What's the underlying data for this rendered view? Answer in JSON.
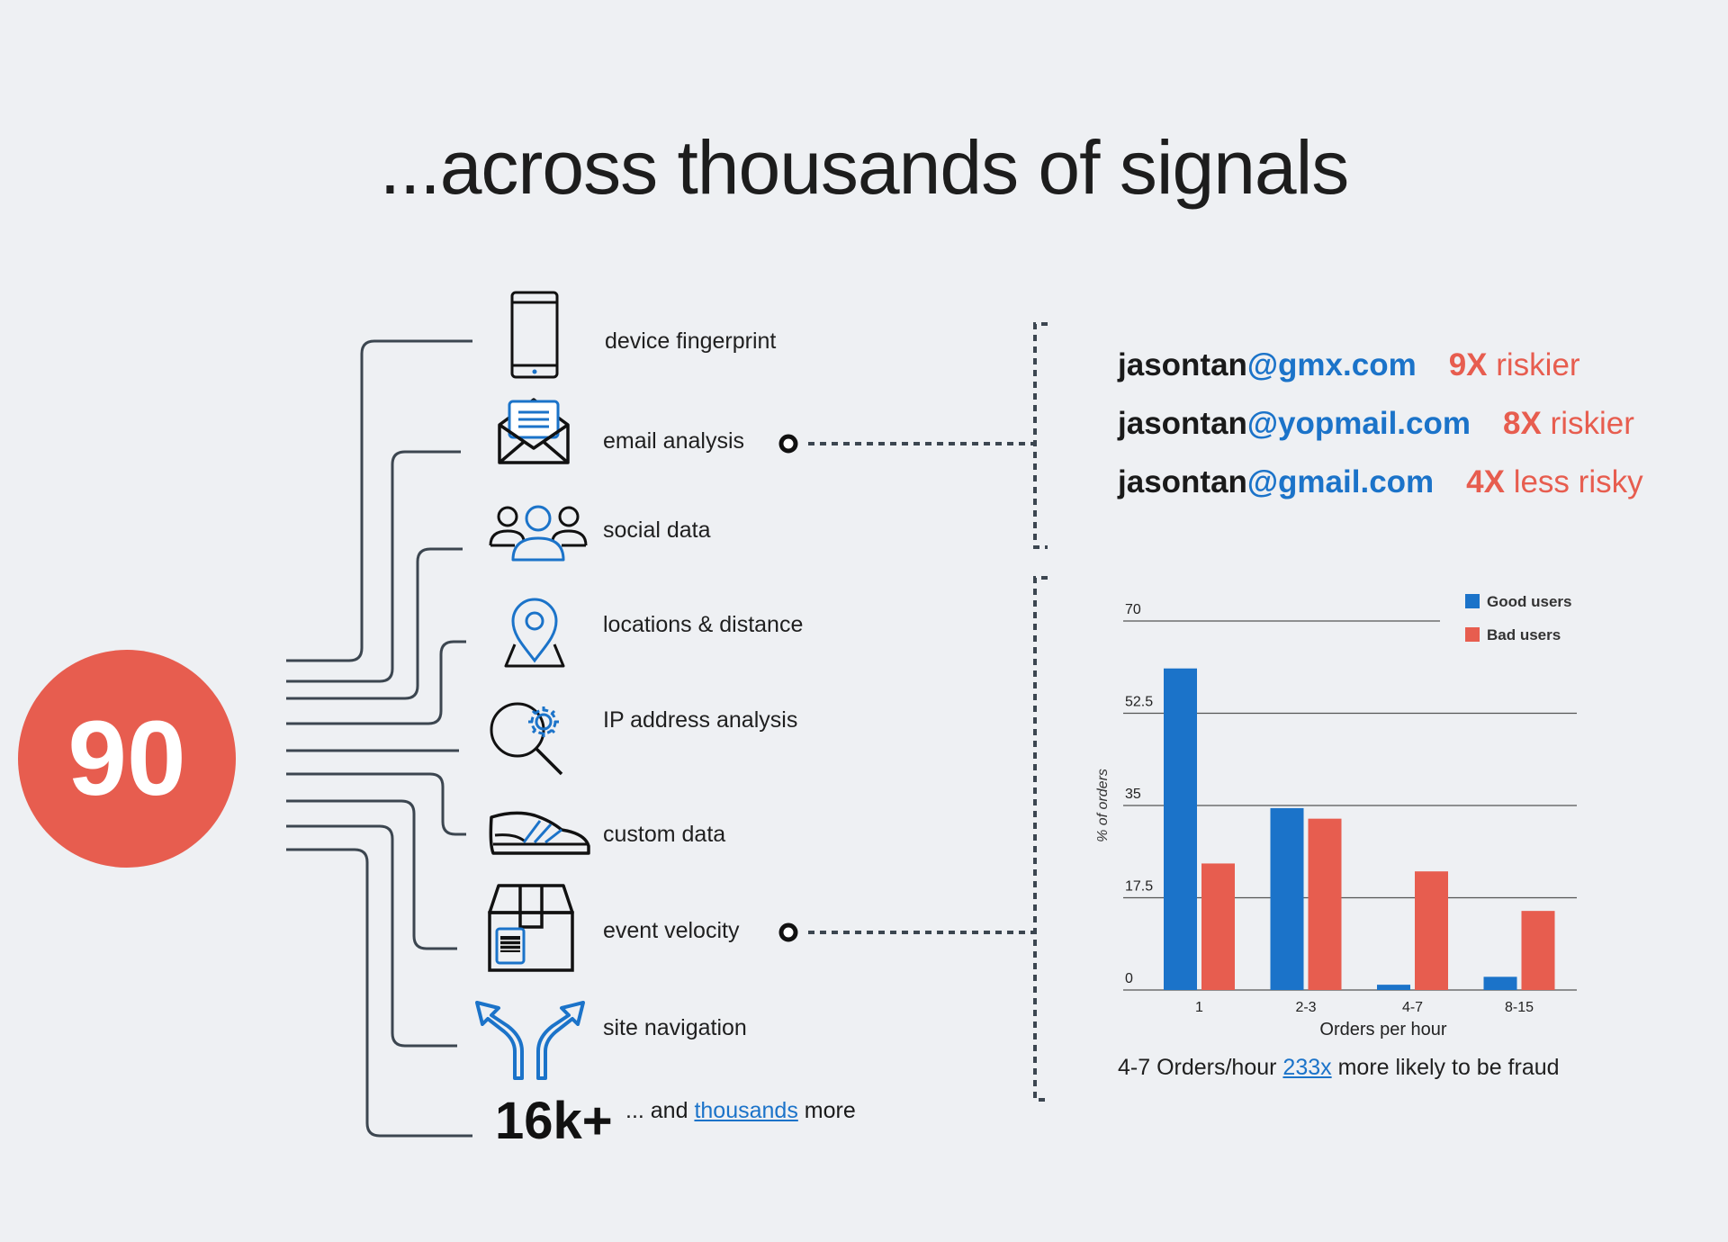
{
  "title": "...across thousands of signals",
  "score": "90",
  "signals": [
    {
      "label": "device fingerprint",
      "icon": "smartphone-icon"
    },
    {
      "label": "email analysis",
      "icon": "envelope-icon"
    },
    {
      "label": "social data",
      "icon": "users-icon"
    },
    {
      "label": "locations & distance",
      "icon": "location-pin-icon"
    },
    {
      "label": "IP address analysis",
      "icon": "gear-search-icon"
    },
    {
      "label": "custom data",
      "icon": "sneaker-icon"
    },
    {
      "label": "event velocity",
      "icon": "package-icon"
    },
    {
      "label": "site navigation",
      "icon": "split-arrow-icon"
    }
  ],
  "more": {
    "count": "16k+",
    "prefix": "... and ",
    "link": "thousands",
    "suffix": " more"
  },
  "emails": [
    {
      "user": "jasontan",
      "domain": "@gmx.com",
      "multiplier": "9X",
      "risk": " riskier"
    },
    {
      "user": "jasontan",
      "domain": "@yopmail.com",
      "multiplier": "8X",
      "risk": " riskier"
    },
    {
      "user": "jasontan",
      "domain": "@gmail.com",
      "multiplier": "4X",
      "risk": " less risky"
    }
  ],
  "chart_data": {
    "type": "bar",
    "categories": [
      "1",
      "2-3",
      "4-7",
      "8-15"
    ],
    "series": [
      {
        "name": "Good users",
        "color": "#1b73c9",
        "values": [
          61,
          34.5,
          1,
          2.5
        ]
      },
      {
        "name": "Bad users",
        "color": "#e75d4f",
        "values": [
          24,
          32.5,
          22.5,
          15
        ]
      }
    ],
    "yticks": [
      "0",
      "17.5",
      "35",
      "52.5",
      "70"
    ],
    "ylim": [
      0,
      70
    ],
    "xlabel": "Orders per hour",
    "ylabel": "% of orders",
    "legend_position": "top-right",
    "grid": true
  },
  "caption": {
    "prefix": "4-7 Orders/hour ",
    "link": "233x",
    "suffix": " more likely to be fraud"
  },
  "colors": {
    "accent_blue": "#1b73c9",
    "accent_red": "#e75d4f",
    "line": "#3c4650",
    "background": "#eef0f3"
  }
}
